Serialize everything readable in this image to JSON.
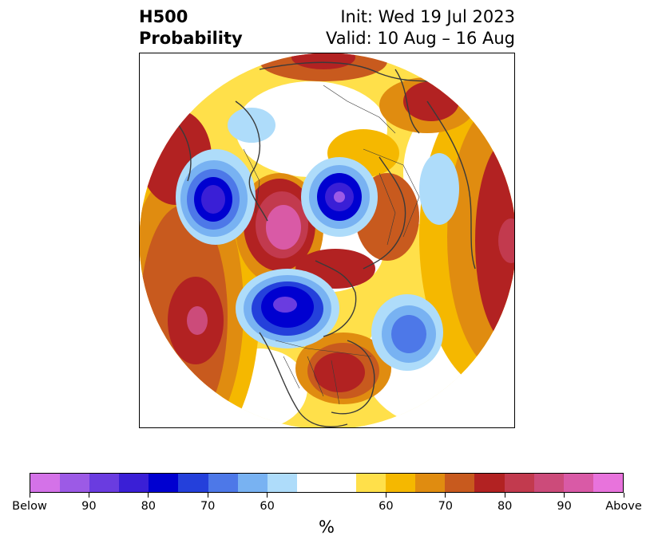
{
  "title": {
    "main": "H500",
    "sub": "Probability",
    "init": "Init: Wed 19 Jul 2023",
    "valid": "Valid: 10 Aug – 16 Aug"
  },
  "map": {
    "projection": "north-polar-stereographic",
    "field": "500 hPa height anomaly probability",
    "frame_color": "#000000",
    "coastline_color": "#3a3a3a",
    "features": [
      {
        "name": "below-center-alaska",
        "sign": "below",
        "peak_pct": 85
      },
      {
        "name": "below-center-scandinavia",
        "sign": "below",
        "peak_pct": 90
      },
      {
        "name": "below-center-greenland-arctic",
        "sign": "below",
        "peak_pct": 90
      },
      {
        "name": "below-center-north-atlantic",
        "sign": "below",
        "peak_pct": 75
      },
      {
        "name": "above-center-siberia",
        "sign": "above",
        "peak_pct": 95
      },
      {
        "name": "above-center-eastern-us",
        "sign": "above",
        "peak_pct": 80
      },
      {
        "name": "above-center-north-pacific",
        "sign": "above",
        "peak_pct": 90
      },
      {
        "name": "above-center-east-asia",
        "sign": "above",
        "peak_pct": 85
      }
    ]
  },
  "colorbar": {
    "colors": [
      "#d472e8",
      "#9c5ae6",
      "#6a3ce0",
      "#3a1fd6",
      "#0000d0",
      "#2440db",
      "#4d78e8",
      "#78b2f2",
      "#aedcfa",
      "#ffffff",
      "#ffffff",
      "#ffe04a",
      "#f5b800",
      "#e08c10",
      "#c85a1e",
      "#b22222",
      "#c23a4e",
      "#cc4b7a",
      "#d95aa6",
      "#e873dc"
    ],
    "tick_labels": [
      "Below",
      "90",
      "80",
      "70",
      "60",
      "60",
      "70",
      "80",
      "90",
      "Above"
    ],
    "unit": "%"
  }
}
